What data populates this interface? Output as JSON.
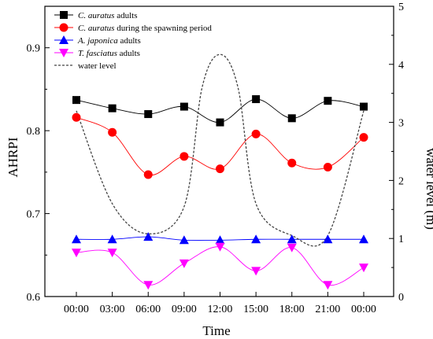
{
  "chart_data": {
    "type": "line",
    "xlabel": "Time",
    "ylabel_left": "AHRPI",
    "ylabel_right": "water level (m)",
    "categories": [
      "00:00",
      "03:00",
      "06:00",
      "09:00",
      "12:00",
      "15:00",
      "18:00",
      "21:00",
      "00:00"
    ],
    "ylim_left": [
      0.6,
      0.95
    ],
    "yticks_left": [
      "0.6",
      "0.7",
      "0.8",
      "0.9"
    ],
    "ylim_right": [
      0,
      5
    ],
    "yticks_right": [
      "0",
      "1",
      "2",
      "3",
      "4",
      "5"
    ],
    "grid": false,
    "legend_position": "top-left",
    "series": [
      {
        "name_italic": "C. auratus",
        "name_rest": " adults",
        "axis": "left",
        "marker": "square",
        "color": "#000000",
        "values": [
          0.837,
          0.827,
          0.82,
          0.829,
          0.81,
          0.838,
          0.815,
          0.836,
          0.829
        ]
      },
      {
        "name_italic": "C. auratus",
        "name_rest": " during the spawning period",
        "axis": "left",
        "marker": "circle",
        "color": "#ff0000",
        "values": [
          0.816,
          0.798,
          0.747,
          0.769,
          0.754,
          0.796,
          0.761,
          0.756,
          0.792
        ]
      },
      {
        "name_italic": "A. japonica",
        "name_rest": " adults",
        "axis": "left",
        "marker": "triangle-up",
        "color": "#0000ff",
        "values": [
          0.669,
          0.669,
          0.672,
          0.668,
          0.668,
          0.669,
          0.669,
          0.669,
          0.669
        ]
      },
      {
        "name_italic": "T. fasciatus",
        "name_rest": " adults",
        "axis": "left",
        "marker": "triangle-down",
        "color": "#ff00ff",
        "values": [
          0.653,
          0.653,
          0.614,
          0.64,
          0.66,
          0.631,
          0.659,
          0.614,
          0.635
        ]
      },
      {
        "name_italic": "",
        "name_rest": "water level",
        "axis": "right",
        "marker": "none",
        "color": "#444444",
        "dashed": true,
        "x": [
          0,
          1,
          2,
          3,
          3.5,
          4,
          4.5,
          5,
          6,
          7,
          8
        ],
        "values": [
          3.2,
          1.6,
          1.08,
          1.55,
          3.6,
          4.17,
          3.6,
          1.6,
          1.05,
          1.05,
          3.2
        ]
      }
    ]
  }
}
